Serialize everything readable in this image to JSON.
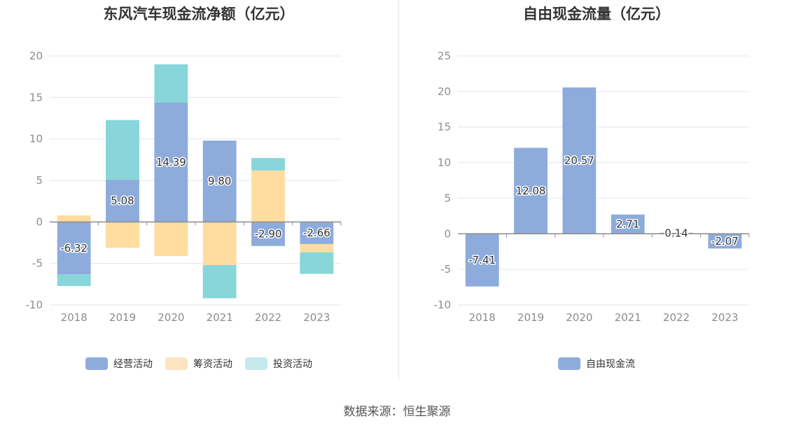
{
  "chart_data": [
    {
      "type": "bar",
      "stacked": true,
      "title": "东风汽车现金流净额（亿元）",
      "categories": [
        "2018",
        "2019",
        "2020",
        "2021",
        "2022",
        "2023"
      ],
      "ylim": [
        -10,
        20
      ],
      "yticks": [
        -10,
        -5,
        0,
        5,
        10,
        15,
        20
      ],
      "grid": true,
      "legend_position": "bottom",
      "series": [
        {
          "name": "经营活动",
          "color": "#8eacdb",
          "values": [
            -6.32,
            5.08,
            14.39,
            9.8,
            -2.9,
            -2.66
          ],
          "labels": [
            "-6.32",
            "5.08",
            "14.39",
            "9.80",
            "-2.90",
            "-2.66"
          ]
        },
        {
          "name": "筹资活动",
          "color": "#ffdca0",
          "values": [
            0.8,
            -3.1,
            -4.1,
            -5.2,
            6.2,
            -1.0
          ]
        },
        {
          "name": "投资活动",
          "color": "#88d6d9",
          "values": [
            -1.4,
            7.2,
            4.6,
            -4.0,
            1.5,
            -2.6
          ]
        }
      ],
      "legend_colors": [
        "#8eacdb",
        "#fde4c0",
        "#c3e9ec"
      ]
    },
    {
      "type": "bar",
      "title": "自由现金流量（亿元）",
      "categories": [
        "2018",
        "2019",
        "2020",
        "2021",
        "2022",
        "2023"
      ],
      "ylim": [
        -10,
        25
      ],
      "yticks": [
        -10,
        -5,
        0,
        5,
        10,
        15,
        20,
        25
      ],
      "grid": true,
      "legend_position": "bottom",
      "series": [
        {
          "name": "自由现金流",
          "color": "#8eacdb",
          "values": [
            -7.41,
            12.08,
            20.57,
            2.71,
            0.14,
            -2.07
          ],
          "labels": [
            "-7.41",
            "12.08",
            "20.57",
            "2.71",
            "0.14",
            "-2.07"
          ]
        }
      ]
    }
  ],
  "footer": {
    "source": "数据来源：恒生聚源"
  }
}
